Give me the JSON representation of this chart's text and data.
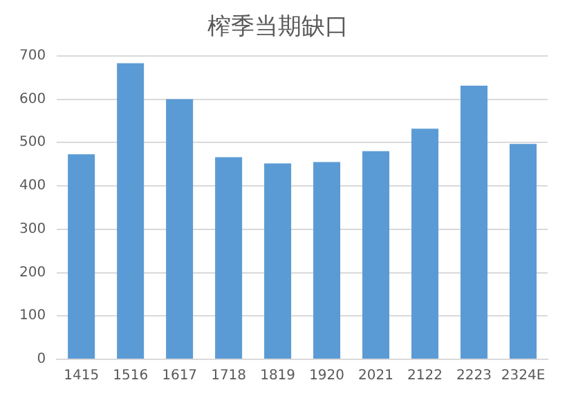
{
  "chart_data": {
    "type": "bar",
    "title": "榨季当期缺口",
    "categories": [
      "1415",
      "1516",
      "1617",
      "1718",
      "1819",
      "1920",
      "2021",
      "2122",
      "2223",
      "2324E"
    ],
    "values": [
      473,
      683,
      600,
      466,
      452,
      455,
      480,
      532,
      631,
      497
    ],
    "color": "#5b9bd5",
    "ylim": [
      0,
      700
    ],
    "yticks": [
      0,
      100,
      200,
      300,
      400,
      500,
      600,
      700
    ],
    "grid": "y",
    "legend": false
  }
}
